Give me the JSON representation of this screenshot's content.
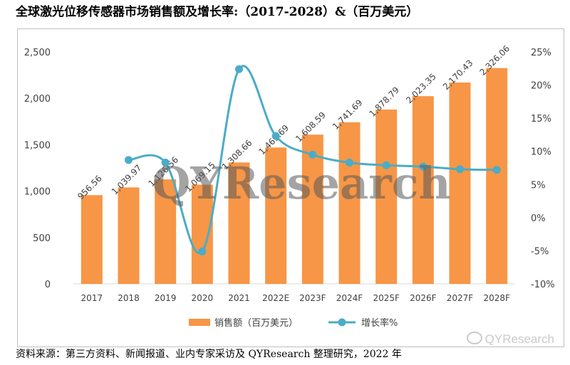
{
  "page_title": "全球激光位移传感器市场销售额及增长率:（2017-2028）&（百万美元）",
  "source_text": "资料来源：第三方资料、新闻报道、业内专家采访及 QYResearch 整理研究，2022 年",
  "watermark": "QYResearch",
  "watermark_secondary": "QYResearch",
  "chart_data": {
    "type": "bar",
    "categories": [
      "2017",
      "2018",
      "2019",
      "2020",
      "2021",
      "2022E",
      "2023F",
      "2024F",
      "2025F",
      "2026F",
      "2027F",
      "2028F"
    ],
    "series": [
      {
        "name": "销售额（百万美元）",
        "type": "bar",
        "axis": "left",
        "color": "#f79646",
        "values": [
          956.56,
          1039.97,
          1126.56,
          1069.15,
          1308.66,
          1469.69,
          1608.59,
          1741.69,
          1878.79,
          2023.35,
          2170.43,
          2326.06
        ],
        "labels": [
          "956.56",
          "1,039.97",
          "1,126.56",
          "1,069.15",
          "1,308.66",
          "1,469.69",
          "1,608.59",
          "1,741.69",
          "1,878.79",
          "2,023.35",
          "2,170.43",
          "2,326.06"
        ]
      },
      {
        "name": "增长率%",
        "type": "line",
        "axis": "right",
        "color": "#4bacc6",
        "values": [
          null,
          8.7,
          8.3,
          -5.1,
          22.4,
          12.3,
          9.5,
          8.3,
          7.9,
          7.7,
          7.3,
          7.2
        ]
      }
    ],
    "y_left": {
      "min": 0,
      "max": 2500,
      "ticks": [
        "0",
        "500",
        "1,000",
        "1,500",
        "2,000",
        "2,500"
      ]
    },
    "y_right": {
      "min": -10,
      "max": 25,
      "ticks": [
        "-10%",
        "-5%",
        "0%",
        "5%",
        "10%",
        "15%",
        "20%",
        "25%"
      ]
    },
    "grid": false,
    "legend_position": "bottom"
  }
}
